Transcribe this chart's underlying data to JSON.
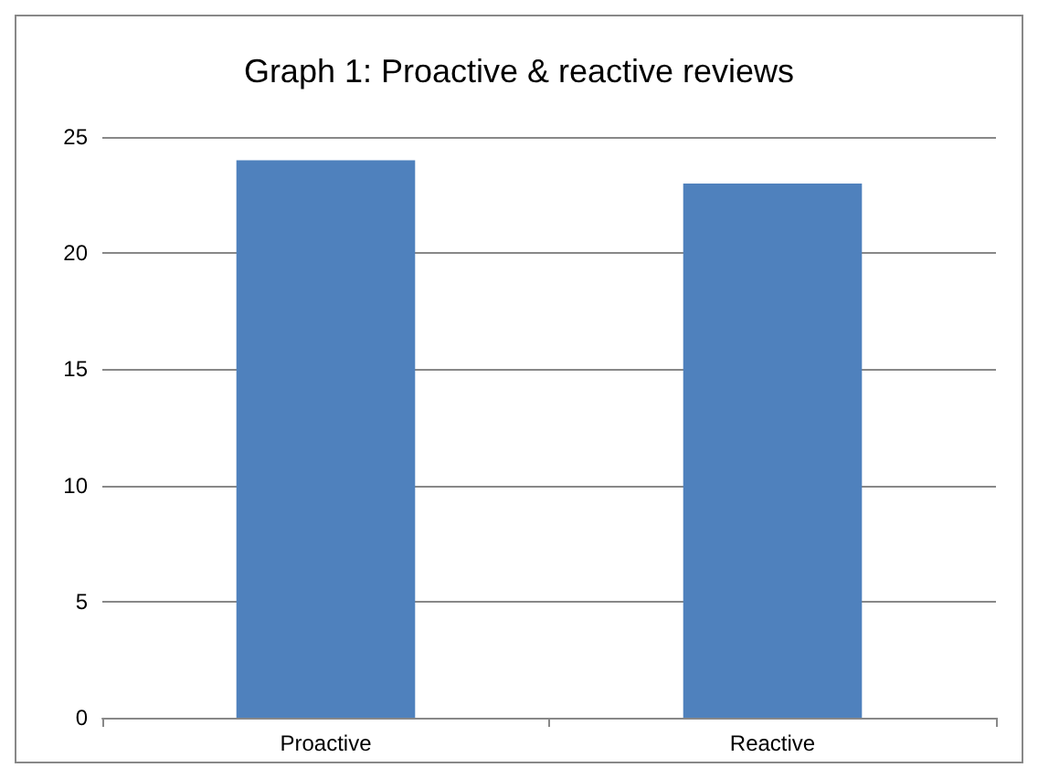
{
  "chart_data": {
    "type": "bar",
    "title": "Graph 1: Proactive & reactive reviews",
    "categories": [
      "Proactive",
      "Reactive"
    ],
    "values": [
      24,
      23
    ],
    "color": "#4f81bd",
    "ylim": [
      0,
      25
    ],
    "yticks": [
      0,
      5,
      10,
      15,
      20,
      25
    ],
    "grid": "y"
  }
}
